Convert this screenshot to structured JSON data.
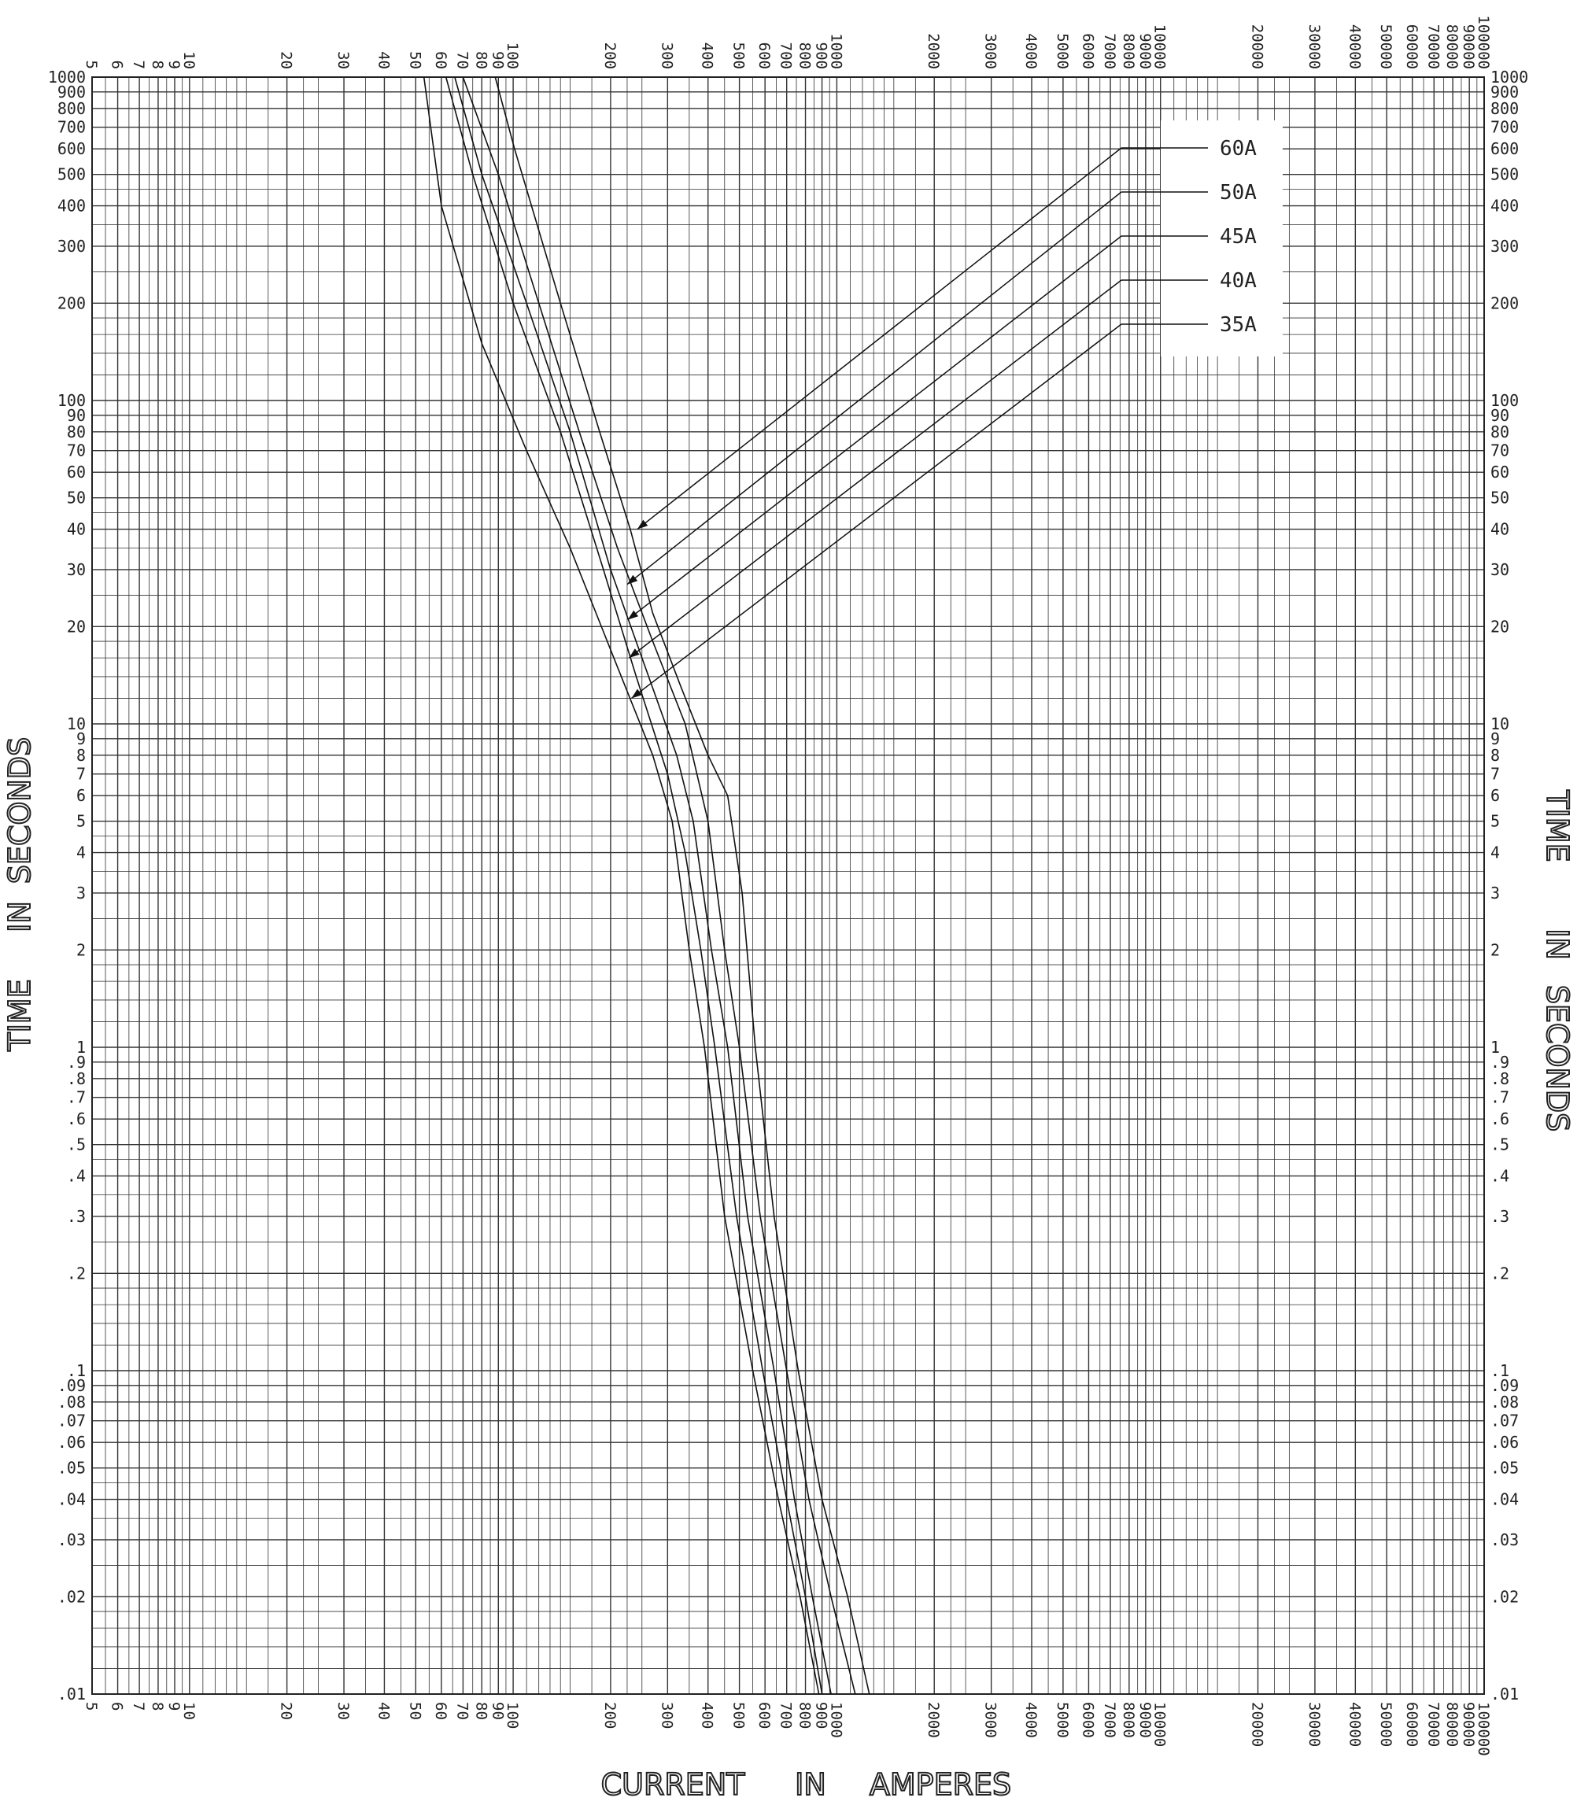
{
  "chart_data": {
    "type": "line",
    "x_scale": "log",
    "y_scale": "log",
    "xlim": [
      5,
      100000
    ],
    "ylim": [
      0.01,
      1000
    ],
    "grid": true,
    "xlabel_words": [
      "CURRENT",
      "IN",
      "AMPERES"
    ],
    "ylabel_words": [
      "TIME",
      "IN",
      "SECONDS"
    ],
    "x_tick_labels": [
      {
        "v": 5,
        "t": "5"
      },
      {
        "v": 6,
        "t": "6"
      },
      {
        "v": 7,
        "t": "7"
      },
      {
        "v": 8,
        "t": "8"
      },
      {
        "v": 9,
        "t": "9"
      },
      {
        "v": 10,
        "t": "10"
      },
      {
        "v": 20,
        "t": "20"
      },
      {
        "v": 30,
        "t": "30"
      },
      {
        "v": 40,
        "t": "40"
      },
      {
        "v": 50,
        "t": "50"
      },
      {
        "v": 60,
        "t": "60"
      },
      {
        "v": 70,
        "t": "70"
      },
      {
        "v": 80,
        "t": "80"
      },
      {
        "v": 90,
        "t": "90"
      },
      {
        "v": 100,
        "t": "100"
      },
      {
        "v": 200,
        "t": "200"
      },
      {
        "v": 300,
        "t": "300"
      },
      {
        "v": 400,
        "t": "400"
      },
      {
        "v": 500,
        "t": "500"
      },
      {
        "v": 600,
        "t": "600"
      },
      {
        "v": 700,
        "t": "700"
      },
      {
        "v": 800,
        "t": "800"
      },
      {
        "v": 900,
        "t": "900"
      },
      {
        "v": 1000,
        "t": "1000"
      },
      {
        "v": 2000,
        "t": "2000"
      },
      {
        "v": 3000,
        "t": "3000"
      },
      {
        "v": 4000,
        "t": "4000"
      },
      {
        "v": 5000,
        "t": "5000"
      },
      {
        "v": 6000,
        "t": "6000"
      },
      {
        "v": 7000,
        "t": "7000"
      },
      {
        "v": 8000,
        "t": "8000"
      },
      {
        "v": 9000,
        "t": "9000"
      },
      {
        "v": 10000,
        "t": "10000"
      },
      {
        "v": 20000,
        "t": "20000"
      },
      {
        "v": 30000,
        "t": "30000"
      },
      {
        "v": 40000,
        "t": "40000"
      },
      {
        "v": 50000,
        "t": "50000"
      },
      {
        "v": 60000,
        "t": "60000"
      },
      {
        "v": 70000,
        "t": "70000"
      },
      {
        "v": 80000,
        "t": "80000"
      },
      {
        "v": 90000,
        "t": "90000"
      },
      {
        "v": 100000,
        "t": "100000"
      }
    ],
    "y_tick_labels": [
      {
        "v": 1000,
        "t": "1000"
      },
      {
        "v": 900,
        "t": "900"
      },
      {
        "v": 800,
        "t": "800"
      },
      {
        "v": 700,
        "t": "700"
      },
      {
        "v": 600,
        "t": "600"
      },
      {
        "v": 500,
        "t": "500"
      },
      {
        "v": 400,
        "t": "400"
      },
      {
        "v": 300,
        "t": "300"
      },
      {
        "v": 200,
        "t": "200"
      },
      {
        "v": 100,
        "t": "100"
      },
      {
        "v": 90,
        "t": "90"
      },
      {
        "v": 80,
        "t": "80"
      },
      {
        "v": 70,
        "t": "70"
      },
      {
        "v": 60,
        "t": "60"
      },
      {
        "v": 50,
        "t": "50"
      },
      {
        "v": 40,
        "t": "40"
      },
      {
        "v": 30,
        "t": "30"
      },
      {
        "v": 20,
        "t": "20"
      },
      {
        "v": 10,
        "t": "10"
      },
      {
        "v": 9,
        "t": "9"
      },
      {
        "v": 8,
        "t": "8"
      },
      {
        "v": 7,
        "t": "7"
      },
      {
        "v": 6,
        "t": "6"
      },
      {
        "v": 5,
        "t": "5"
      },
      {
        "v": 4,
        "t": "4"
      },
      {
        "v": 3,
        "t": "3"
      },
      {
        "v": 2,
        "t": "2"
      },
      {
        "v": 1,
        "t": "1"
      },
      {
        "v": 0.9,
        "t": ".9"
      },
      {
        "v": 0.8,
        "t": ".8"
      },
      {
        "v": 0.7,
        "t": ".7"
      },
      {
        "v": 0.6,
        "t": ".6"
      },
      {
        "v": 0.5,
        "t": ".5"
      },
      {
        "v": 0.4,
        "t": ".4"
      },
      {
        "v": 0.3,
        "t": ".3"
      },
      {
        "v": 0.2,
        "t": ".2"
      },
      {
        "v": 0.1,
        "t": ".1"
      },
      {
        "v": 0.09,
        "t": ".09"
      },
      {
        "v": 0.08,
        "t": ".08"
      },
      {
        "v": 0.07,
        "t": ".07"
      },
      {
        "v": 0.06,
        "t": ".06"
      },
      {
        "v": 0.05,
        "t": ".05"
      },
      {
        "v": 0.04,
        "t": ".04"
      },
      {
        "v": 0.03,
        "t": ".03"
      },
      {
        "v": 0.02,
        "t": ".02"
      },
      {
        "v": 0.01,
        "t": ".01"
      }
    ],
    "legend_position": "top-right",
    "series": [
      {
        "name": "60A",
        "callout_point": [
          242,
          40
        ],
        "points": [
          [
            88,
            1000
          ],
          [
            101,
            600
          ],
          [
            140,
            200
          ],
          [
            185,
            80
          ],
          [
            230,
            40
          ],
          [
            270,
            22
          ],
          [
            330,
            13
          ],
          [
            400,
            8
          ],
          [
            460,
            6
          ],
          [
            510,
            3
          ],
          [
            560,
            1
          ],
          [
            640,
            0.3
          ],
          [
            760,
            0.1
          ],
          [
            900,
            0.04
          ],
          [
            1080,
            0.02
          ],
          [
            1260,
            0.01
          ]
        ]
      },
      {
        "name": "50A",
        "callout_point": [
          225,
          27
        ],
        "points": [
          [
            70,
            1000
          ],
          [
            90,
            500
          ],
          [
            120,
            200
          ],
          [
            160,
            80
          ],
          [
            210,
            35
          ],
          [
            270,
            18
          ],
          [
            340,
            10
          ],
          [
            400,
            5
          ],
          [
            450,
            2
          ],
          [
            500,
            1
          ],
          [
            580,
            0.3
          ],
          [
            700,
            0.1
          ],
          [
            820,
            0.04
          ],
          [
            960,
            0.02
          ],
          [
            1140,
            0.01
          ]
        ]
      },
      {
        "name": "45A",
        "callout_point": [
          226,
          21
        ],
        "points": [
          [
            66,
            1000
          ],
          [
            80,
            500
          ],
          [
            110,
            200
          ],
          [
            150,
            80
          ],
          [
            200,
            30
          ],
          [
            250,
            16
          ],
          [
            320,
            8
          ],
          [
            360,
            5
          ],
          [
            410,
            2
          ],
          [
            460,
            1
          ],
          [
            530,
            0.3
          ],
          [
            640,
            0.1
          ],
          [
            740,
            0.04
          ],
          [
            840,
            0.02
          ],
          [
            960,
            0.01
          ]
        ]
      },
      {
        "name": "40A",
        "callout_point": [
          228,
          16
        ],
        "points": [
          [
            62,
            1000
          ],
          [
            75,
            500
          ],
          [
            100,
            200
          ],
          [
            140,
            80
          ],
          [
            190,
            30
          ],
          [
            240,
            14
          ],
          [
            300,
            7
          ],
          [
            340,
            4
          ],
          [
            380,
            2
          ],
          [
            420,
            1
          ],
          [
            490,
            0.3
          ],
          [
            590,
            0.1
          ],
          [
            700,
            0.04
          ],
          [
            800,
            0.02
          ],
          [
            900,
            0.01
          ]
        ]
      },
      {
        "name": "35A",
        "callout_point": [
          232,
          12
        ],
        "points": [
          [
            53,
            1000
          ],
          [
            60,
            400
          ],
          [
            80,
            150
          ],
          [
            110,
            70
          ],
          [
            150,
            35
          ],
          [
            210,
            15
          ],
          [
            270,
            8
          ],
          [
            310,
            5
          ],
          [
            350,
            2
          ],
          [
            390,
            1
          ],
          [
            450,
            0.3
          ],
          [
            550,
            0.1
          ],
          [
            660,
            0.04
          ],
          [
            770,
            0.02
          ],
          [
            880,
            0.01
          ]
        ]
      }
    ]
  }
}
